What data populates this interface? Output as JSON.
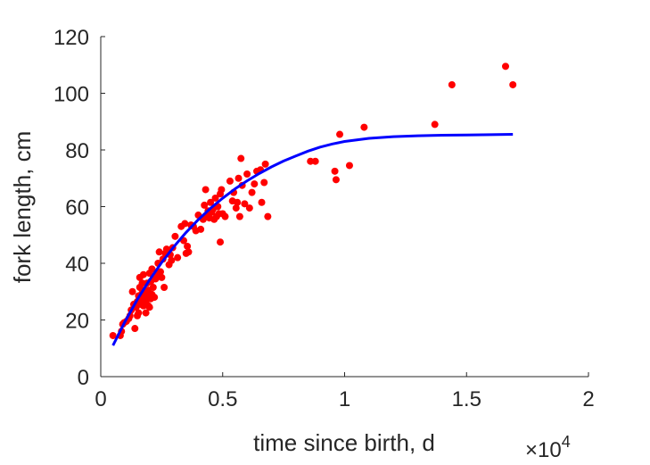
{
  "chart_data": {
    "type": "scatter",
    "title": "",
    "xlabel": "time since birth, d",
    "ylabel": "fork length, cm",
    "x_multiplier": "×10",
    "x_multiplier_exp": "4",
    "xlim": [
      0,
      20000
    ],
    "ylim": [
      0,
      120
    ],
    "x_ticks": [
      0,
      5000,
      10000,
      15000,
      20000
    ],
    "x_tick_labels": [
      "0",
      "0.5",
      "1",
      "1.5",
      "2"
    ],
    "y_ticks": [
      0,
      20,
      40,
      60,
      80,
      100,
      120
    ],
    "y_tick_labels": [
      "0",
      "20",
      "40",
      "60",
      "80",
      "100",
      "120"
    ],
    "grid": false,
    "series": [
      {
        "kind": "scatter",
        "color": "#ff0000",
        "points": [
          [
            500,
            14.5
          ],
          [
            800,
            14.5
          ],
          [
            850,
            16
          ],
          [
            900,
            18.5
          ],
          [
            950,
            19
          ],
          [
            1050,
            19.5
          ],
          [
            1150,
            20.5
          ],
          [
            1200,
            21.5
          ],
          [
            1250,
            23.5
          ],
          [
            1300,
            30
          ],
          [
            1350,
            25.5
          ],
          [
            1400,
            17
          ],
          [
            1450,
            24.5
          ],
          [
            1500,
            21.5
          ],
          [
            1500,
            26.5
          ],
          [
            1550,
            22.5
          ],
          [
            1550,
            28.5
          ],
          [
            1600,
            31.5
          ],
          [
            1600,
            35
          ],
          [
            1650,
            25.5
          ],
          [
            1650,
            27
          ],
          [
            1700,
            29.5
          ],
          [
            1700,
            33
          ],
          [
            1750,
            25
          ],
          [
            1750,
            36
          ],
          [
            1800,
            27.5
          ],
          [
            1800,
            30.5
          ],
          [
            1850,
            22.5
          ],
          [
            1850,
            26
          ],
          [
            1900,
            28.5
          ],
          [
            1900,
            33
          ],
          [
            1950,
            25
          ],
          [
            1950,
            30.5
          ],
          [
            2000,
            24.5
          ],
          [
            2000,
            36.5
          ],
          [
            2050,
            27.5
          ],
          [
            2050,
            33.5
          ],
          [
            2100,
            29
          ],
          [
            2100,
            38
          ],
          [
            2150,
            31.5
          ],
          [
            2200,
            28
          ],
          [
            2250,
            34.5
          ],
          [
            2300,
            36.5
          ],
          [
            2350,
            40
          ],
          [
            2400,
            44
          ],
          [
            2450,
            37
          ],
          [
            2500,
            35
          ],
          [
            2550,
            41.5
          ],
          [
            2600,
            31.5
          ],
          [
            2650,
            43.5
          ],
          [
            2700,
            45
          ],
          [
            2800,
            39.5
          ],
          [
            2850,
            43
          ],
          [
            2900,
            41
          ],
          [
            2950,
            45.5
          ],
          [
            3050,
            49.5
          ],
          [
            3150,
            42
          ],
          [
            3300,
            53
          ],
          [
            3400,
            48
          ],
          [
            3450,
            54
          ],
          [
            3500,
            43.5
          ],
          [
            3550,
            46
          ],
          [
            3600,
            44
          ],
          [
            3700,
            53.5
          ],
          [
            3800,
            53
          ],
          [
            3900,
            51.5
          ],
          [
            4000,
            57
          ],
          [
            4100,
            52
          ],
          [
            4200,
            55.5
          ],
          [
            4250,
            60.5
          ],
          [
            4300,
            66
          ],
          [
            4350,
            57
          ],
          [
            4400,
            58.5
          ],
          [
            4450,
            56
          ],
          [
            4500,
            61.5
          ],
          [
            4550,
            58
          ],
          [
            4600,
            59
          ],
          [
            4650,
            55.5
          ],
          [
            4700,
            63
          ],
          [
            4750,
            56.5
          ],
          [
            4800,
            60
          ],
          [
            4850,
            57.5
          ],
          [
            4900,
            47.5
          ],
          [
            4900,
            64.5
          ],
          [
            4950,
            66
          ],
          [
            5000,
            57.5
          ],
          [
            5100,
            56.5
          ],
          [
            5300,
            69
          ],
          [
            5400,
            62
          ],
          [
            5450,
            65
          ],
          [
            5550,
            59.5
          ],
          [
            5600,
            61.5
          ],
          [
            5650,
            70
          ],
          [
            5700,
            56.5
          ],
          [
            5750,
            77
          ],
          [
            5800,
            67.5
          ],
          [
            5900,
            61
          ],
          [
            6000,
            71.5
          ],
          [
            6100,
            59.5
          ],
          [
            6200,
            65
          ],
          [
            6300,
            68
          ],
          [
            6400,
            72.5
          ],
          [
            6550,
            73
          ],
          [
            6600,
            61.5
          ],
          [
            6700,
            68.5
          ],
          [
            6750,
            75
          ],
          [
            6850,
            56.5
          ],
          [
            8600,
            76
          ],
          [
            8800,
            76
          ],
          [
            9600,
            72.5
          ],
          [
            9650,
            69.5
          ],
          [
            9800,
            85.5
          ],
          [
            10200,
            74.5
          ],
          [
            10800,
            88
          ],
          [
            13700,
            89
          ],
          [
            14400,
            103
          ],
          [
            16600,
            109.5
          ],
          [
            16900,
            103
          ]
        ]
      },
      {
        "kind": "line",
        "color": "#0000ff",
        "points": [
          [
            500,
            11
          ],
          [
            1000,
            19.5
          ],
          [
            1500,
            27.2
          ],
          [
            2000,
            34.1
          ],
          [
            2500,
            40.3
          ],
          [
            3000,
            45.9
          ],
          [
            3500,
            50.9
          ],
          [
            4000,
            55.4
          ],
          [
            4500,
            59.4
          ],
          [
            5000,
            63
          ],
          [
            5500,
            66.2
          ],
          [
            6000,
            69.1
          ],
          [
            6500,
            71.7
          ],
          [
            7000,
            74
          ],
          [
            7500,
            76.1
          ],
          [
            8000,
            77.9
          ],
          [
            8500,
            79.6
          ],
          [
            9000,
            81
          ],
          [
            9500,
            82.1
          ],
          [
            10000,
            83
          ],
          [
            11000,
            84.1
          ],
          [
            12000,
            84.7
          ],
          [
            13000,
            85
          ],
          [
            14000,
            85.2
          ],
          [
            15000,
            85.3
          ],
          [
            16000,
            85.4
          ],
          [
            16900,
            85.5
          ]
        ]
      }
    ]
  }
}
